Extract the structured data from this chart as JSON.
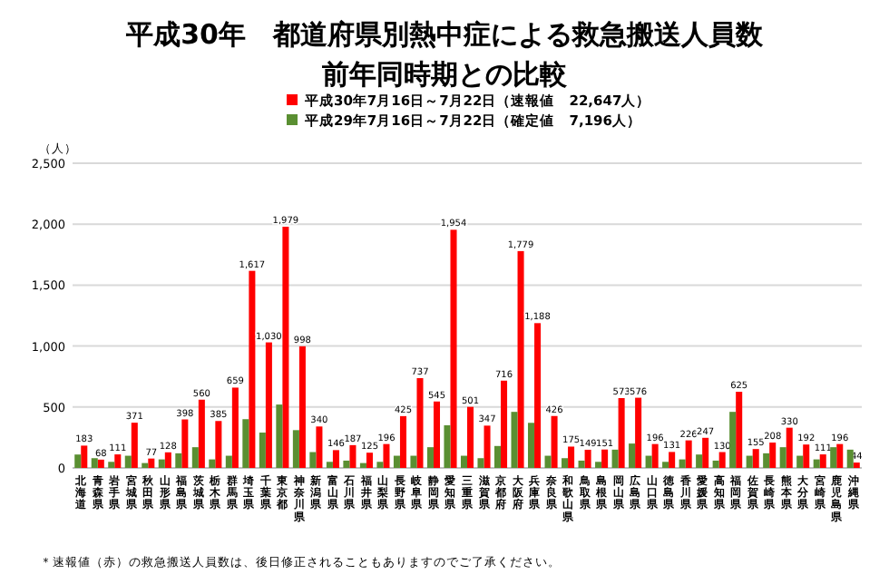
{
  "chart_data": {
    "type": "bar",
    "title": "平成30年　都道府県別熱中症による救急搬送人員数",
    "subtitle": "前年同時期との比較",
    "ylabel": "（人）",
    "categories": [
      "北海道",
      "青森県",
      "岩手県",
      "宮城県",
      "秋田県",
      "山形県",
      "福島県",
      "茨城県",
      "栃木県",
      "群馬県",
      "埼玉県",
      "千葉県",
      "東京都",
      "神奈川県",
      "新潟県",
      "富山県",
      "石川県",
      "福井県",
      "山梨県",
      "長野県",
      "岐阜県",
      "静岡県",
      "愛知県",
      "三重県",
      "滋賀県",
      "京都府",
      "大阪府",
      "兵庫県",
      "奈良県",
      "和歌山県",
      "鳥取県",
      "島根県",
      "岡山県",
      "広島県",
      "山口県",
      "徳島県",
      "香川県",
      "愛媛県",
      "高知県",
      "福岡県",
      "佐賀県",
      "長崎県",
      "熊本県",
      "大分県",
      "宮崎県",
      "鹿児島県",
      "沖縄県"
    ],
    "series": [
      {
        "name": "平成30年7月16日～7月22日（速報値　22,647人）",
        "color": "#ff0000",
        "values": [
          183,
          68,
          111,
          371,
          77,
          128,
          398,
          560,
          385,
          659,
          1617,
          1030,
          1979,
          998,
          340,
          146,
          187,
          125,
          196,
          425,
          737,
          545,
          1954,
          501,
          347,
          716,
          1779,
          1188,
          426,
          175,
          149,
          151,
          573,
          576,
          196,
          131,
          226,
          247,
          130,
          625,
          155,
          208,
          330,
          192,
          111,
          196,
          44
        ],
        "value_labels": [
          "183",
          "68",
          "111",
          "371",
          "77",
          "128",
          "398",
          "560",
          "385",
          "659",
          "1,617",
          "1,030",
          "1,979",
          "998",
          "340",
          "146",
          "187",
          "125",
          "196",
          "425",
          "737",
          "545",
          "1,954",
          "501",
          "347",
          "716",
          "1,779",
          "1,188",
          "426",
          "175",
          "149",
          "151",
          "573",
          "576",
          "196",
          "131",
          "226",
          "247",
          "130",
          "625",
          "155",
          "208",
          "330",
          "192",
          "111",
          "196",
          "44"
        ]
      },
      {
        "name": "平成29年7月16日～7月22日（確定値　7,196人）",
        "color": "#5a8f32",
        "values": [
          110,
          80,
          50,
          100,
          40,
          70,
          120,
          170,
          70,
          100,
          400,
          290,
          520,
          310,
          130,
          50,
          60,
          40,
          50,
          100,
          100,
          170,
          350,
          100,
          80,
          180,
          460,
          370,
          100,
          80,
          60,
          50,
          150,
          200,
          100,
          50,
          70,
          110,
          60,
          460,
          100,
          120,
          170,
          100,
          70,
          170,
          150
        ]
      }
    ],
    "ylim": [
      0,
      2500
    ],
    "yticks": [
      {
        "value": 0,
        "label": "0"
      },
      {
        "value": 500,
        "label": "500"
      },
      {
        "value": 1000,
        "label": "1,000"
      },
      {
        "value": 1500,
        "label": "1,500"
      },
      {
        "value": 2000,
        "label": "2,000"
      },
      {
        "value": 2500,
        "label": "2,500"
      }
    ],
    "grid": "y",
    "legend": "top",
    "annotations": [
      "＊速報値（赤）の救急搬送人員数は、後日修正されることもありますのでご了承ください。"
    ]
  }
}
